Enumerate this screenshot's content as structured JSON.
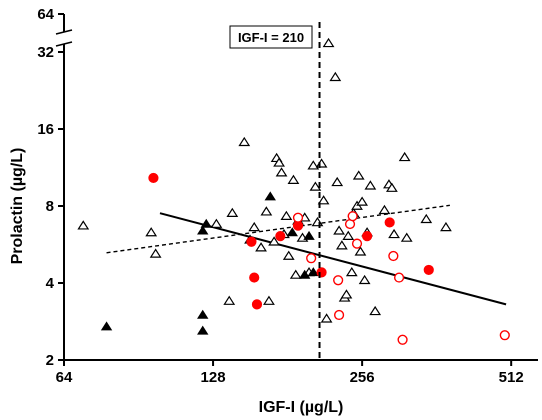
{
  "chart_data": {
    "type": "scatter",
    "xlabel": "IGF-I (µg/L)",
    "ylabel": "Prolactin (µg/L)",
    "x_scale": "log2",
    "y_scale": "log2",
    "xlim": [
      64,
      580
    ],
    "ylim": [
      2,
      64
    ],
    "x_ticks": [
      64,
      128,
      256,
      512
    ],
    "y_ticks": [
      2,
      4,
      8,
      16,
      32,
      64
    ],
    "axis_break": "y between 32 and 64",
    "grid": false,
    "annotation": {
      "text": "IGF-I = 210",
      "x": 210
    },
    "series": [
      {
        "marker": "open-triangle",
        "color": "#000000",
        "points": [
          [
            70,
            6.7
          ],
          [
            98,
            5.2
          ],
          [
            96,
            6.3
          ],
          [
            130,
            6.8
          ],
          [
            138,
            3.4
          ],
          [
            140,
            7.5
          ],
          [
            148,
            14.2
          ],
          [
            152,
            5.9
          ],
          [
            155,
            6.6
          ],
          [
            160,
            5.5
          ],
          [
            164,
            7.6
          ],
          [
            166,
            3.4
          ],
          [
            170,
            5.8
          ],
          [
            172,
            12.3
          ],
          [
            174,
            11.8
          ],
          [
            176,
            10.8
          ],
          [
            178,
            6.2
          ],
          [
            180,
            7.3
          ],
          [
            182,
            5.1
          ],
          [
            186,
            10.1
          ],
          [
            188,
            4.3
          ],
          [
            190,
            7.0
          ],
          [
            194,
            6.0
          ],
          [
            196,
            7.2
          ],
          [
            200,
            4.4
          ],
          [
            204,
            11.5
          ],
          [
            206,
            9.5
          ],
          [
            208,
            6.9
          ],
          [
            212,
            11.7
          ],
          [
            214,
            8.4
          ],
          [
            217,
            2.9
          ],
          [
            219,
            37.5
          ],
          [
            226,
            25.5
          ],
          [
            228,
            9.9
          ],
          [
            230,
            6.4
          ],
          [
            233,
            5.6
          ],
          [
            236,
            3.5
          ],
          [
            238,
            3.6
          ],
          [
            240,
            6.1
          ],
          [
            244,
            4.4
          ],
          [
            246,
            7.5
          ],
          [
            250,
            8.0
          ],
          [
            252,
            10.5
          ],
          [
            254,
            5.3
          ],
          [
            256,
            8.3
          ],
          [
            259,
            4.1
          ],
          [
            262,
            6.3
          ],
          [
            266,
            9.6
          ],
          [
            272,
            3.1
          ],
          [
            284,
            7.7
          ],
          [
            290,
            9.7
          ],
          [
            294,
            9.4
          ],
          [
            297,
            6.2
          ],
          [
            312,
            12.4
          ],
          [
            315,
            6.0
          ],
          [
            345,
            7.1
          ],
          [
            378,
            6.6
          ]
        ]
      },
      {
        "marker": "filled-triangle",
        "color": "#000000",
        "points": [
          [
            78,
            2.7
          ],
          [
            122,
            6.4
          ],
          [
            124,
            6.8
          ],
          [
            122,
            3.0
          ],
          [
            122,
            2.6
          ],
          [
            167,
            8.7
          ],
          [
            185,
            6.3
          ],
          [
            196,
            4.3
          ],
          [
            200,
            6.1
          ],
          [
            204,
            4.4
          ]
        ]
      },
      {
        "marker": "filled-circle",
        "color": "#ff0000",
        "points": [
          [
            97,
            10.3
          ],
          [
            153,
            5.8
          ],
          [
            155,
            4.2
          ],
          [
            157,
            3.3
          ],
          [
            175,
            6.1
          ],
          [
            190,
            6.7
          ],
          [
            212,
            4.4
          ],
          [
            262,
            6.1
          ],
          [
            291,
            6.9
          ],
          [
            349,
            4.5
          ]
        ]
      },
      {
        "marker": "open-circle",
        "color": "#ff0000",
        "points": [
          [
            190,
            7.2
          ],
          [
            202,
            5.0
          ],
          [
            229,
            4.1
          ],
          [
            230,
            3.0
          ],
          [
            242,
            6.8
          ],
          [
            245,
            7.3
          ],
          [
            250,
            5.7
          ],
          [
            296,
            5.1
          ],
          [
            304,
            4.2
          ],
          [
            309,
            2.4
          ],
          [
            497,
            2.5
          ]
        ]
      }
    ],
    "trend_lines": [
      {
        "style": "solid",
        "color": "#000000",
        "x": [
          100,
          500
        ],
        "y": [
          7.5,
          3.3
        ]
      },
      {
        "style": "dashed",
        "color": "#000000",
        "x": [
          78,
          385
        ],
        "y": [
          5.25,
          8.05
        ]
      }
    ]
  }
}
